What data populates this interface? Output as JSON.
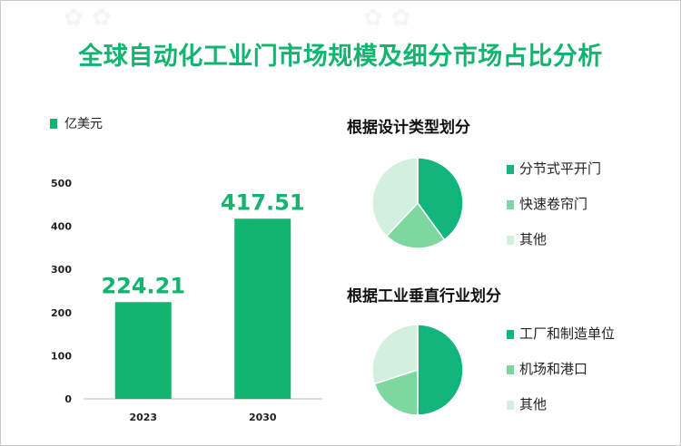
{
  "title": "全球自动化工业门市场规模及细分市场占比分析",
  "chart_data": [
    {
      "type": "bar",
      "legend": "亿美元",
      "categories": [
        "2023",
        "2030"
      ],
      "values": [
        224.21,
        417.51
      ],
      "data_labels": [
        "224.21",
        "417.51"
      ],
      "ylim": [
        0,
        500
      ],
      "yticks": [
        0,
        100,
        200,
        300,
        400,
        500
      ],
      "color": "#12b46f"
    },
    {
      "type": "pie",
      "title": "根据设计类型划分",
      "labels": [
        "分节式平开门",
        "快速卷帘门",
        "其他"
      ],
      "values": [
        40,
        22,
        38
      ],
      "colors": [
        "#12b67a",
        "#7dd89f",
        "#d2f0dd"
      ]
    },
    {
      "type": "pie",
      "title": "根据工业垂直行业划分",
      "labels": [
        "工厂和制造单位",
        "机场和港口",
        "其他"
      ],
      "values": [
        50,
        20,
        30
      ],
      "colors": [
        "#12b67a",
        "#7dd89f",
        "#d2f0dd"
      ]
    }
  ]
}
